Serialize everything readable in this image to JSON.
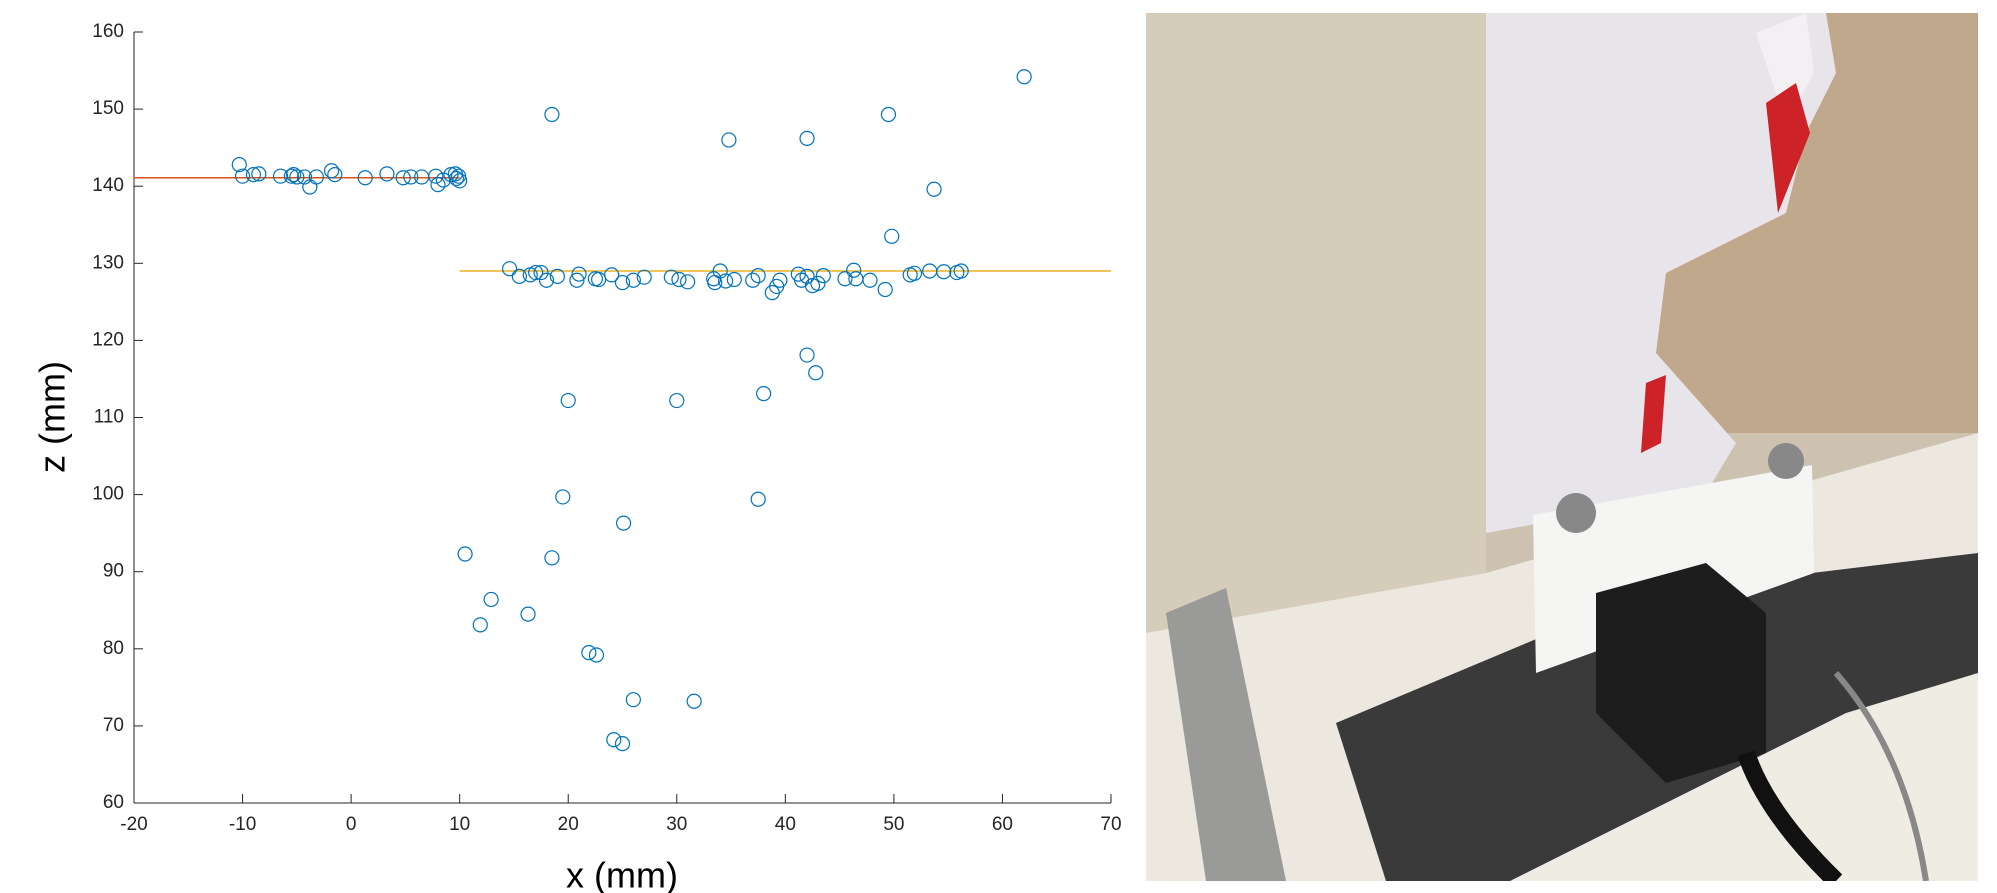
{
  "chart_data": {
    "type": "scatter",
    "xlabel": "x (mm)",
    "ylabel": "z (mm)",
    "xlim": [
      -20,
      70
    ],
    "ylim": [
      60,
      160
    ],
    "xticks": [
      -20,
      -10,
      0,
      10,
      20,
      30,
      40,
      50,
      60,
      70
    ],
    "yticks": [
      60,
      70,
      80,
      90,
      100,
      110,
      120,
      130,
      140,
      150,
      160
    ],
    "grid": false,
    "marker_color": "#0072bd",
    "x": [
      -10.3,
      -10,
      -9,
      -8.5,
      -6.5,
      -5.5,
      -5.3,
      -5,
      -4.3,
      -3.8,
      -3.2,
      -1.8,
      -1.5,
      1.3,
      3.3,
      4.8,
      5.5,
      6.5,
      7.8,
      8,
      8.5,
      9.2,
      9.6,
      9.9,
      10,
      9.7,
      14.6,
      15.5,
      16.5,
      17,
      17.5,
      18,
      19,
      20.8,
      21,
      22.5,
      22.8,
      24,
      25,
      26,
      27,
      29.5,
      30.2,
      31,
      33.4,
      33.5,
      34,
      34.5,
      35.3,
      37,
      37.5,
      38.8,
      39.2,
      39.5,
      41.2,
      41.5,
      42,
      42.5,
      43,
      43.5,
      45.5,
      46.3,
      46.5,
      47.8,
      49.2,
      51.5,
      51.9,
      53.3,
      54.6,
      55.8,
      56.2,
      18.5,
      34.8,
      42,
      49.5,
      62,
      53.7,
      49.8,
      42,
      42.8,
      38,
      20,
      30,
      19.5,
      37.5,
      25.1,
      10.5,
      18.5,
      12.9,
      16.3,
      11.9,
      21.9,
      22.6,
      26,
      31.6,
      24.2,
      25
    ],
    "values": [
      142.8,
      141.3,
      141.5,
      141.6,
      141.3,
      141.3,
      141.5,
      141.2,
      141.2,
      139.9,
      141.2,
      142,
      141.5,
      141.1,
      141.6,
      141.1,
      141.2,
      141.2,
      141.3,
      140.2,
      140.8,
      141.5,
      141.6,
      141.3,
      140.7,
      141,
      129.3,
      128.3,
      128.5,
      128.8,
      128.8,
      127.8,
      128.3,
      127.8,
      128.6,
      128,
      127.9,
      128.5,
      127.5,
      127.8,
      128.2,
      128.2,
      127.9,
      127.6,
      128,
      127.5,
      129,
      127.7,
      127.9,
      127.8,
      128.4,
      126.2,
      127,
      127.8,
      128.6,
      127.8,
      128.3,
      127.1,
      127.4,
      128.4,
      128,
      129.1,
      128,
      127.8,
      126.6,
      128.5,
      128.7,
      129,
      128.9,
      128.8,
      129,
      149.3,
      146,
      146.2,
      149.3,
      154.2,
      139.6,
      133.5,
      118.1,
      115.8,
      113.1,
      112.2,
      112.2,
      99.7,
      99.4,
      96.3,
      92.3,
      91.8,
      86.4,
      84.5,
      83.1,
      79.5,
      79.2,
      73.4,
      73.2,
      68.2,
      67.7
    ],
    "lines": [
      {
        "x": [
          -20,
          10
        ],
        "values": [
          141.1,
          141.1
        ],
        "color": "#d95319"
      },
      {
        "x": [
          10,
          70
        ],
        "values": [
          129,
          129
        ],
        "color": "#edb120"
      }
    ]
  }
}
